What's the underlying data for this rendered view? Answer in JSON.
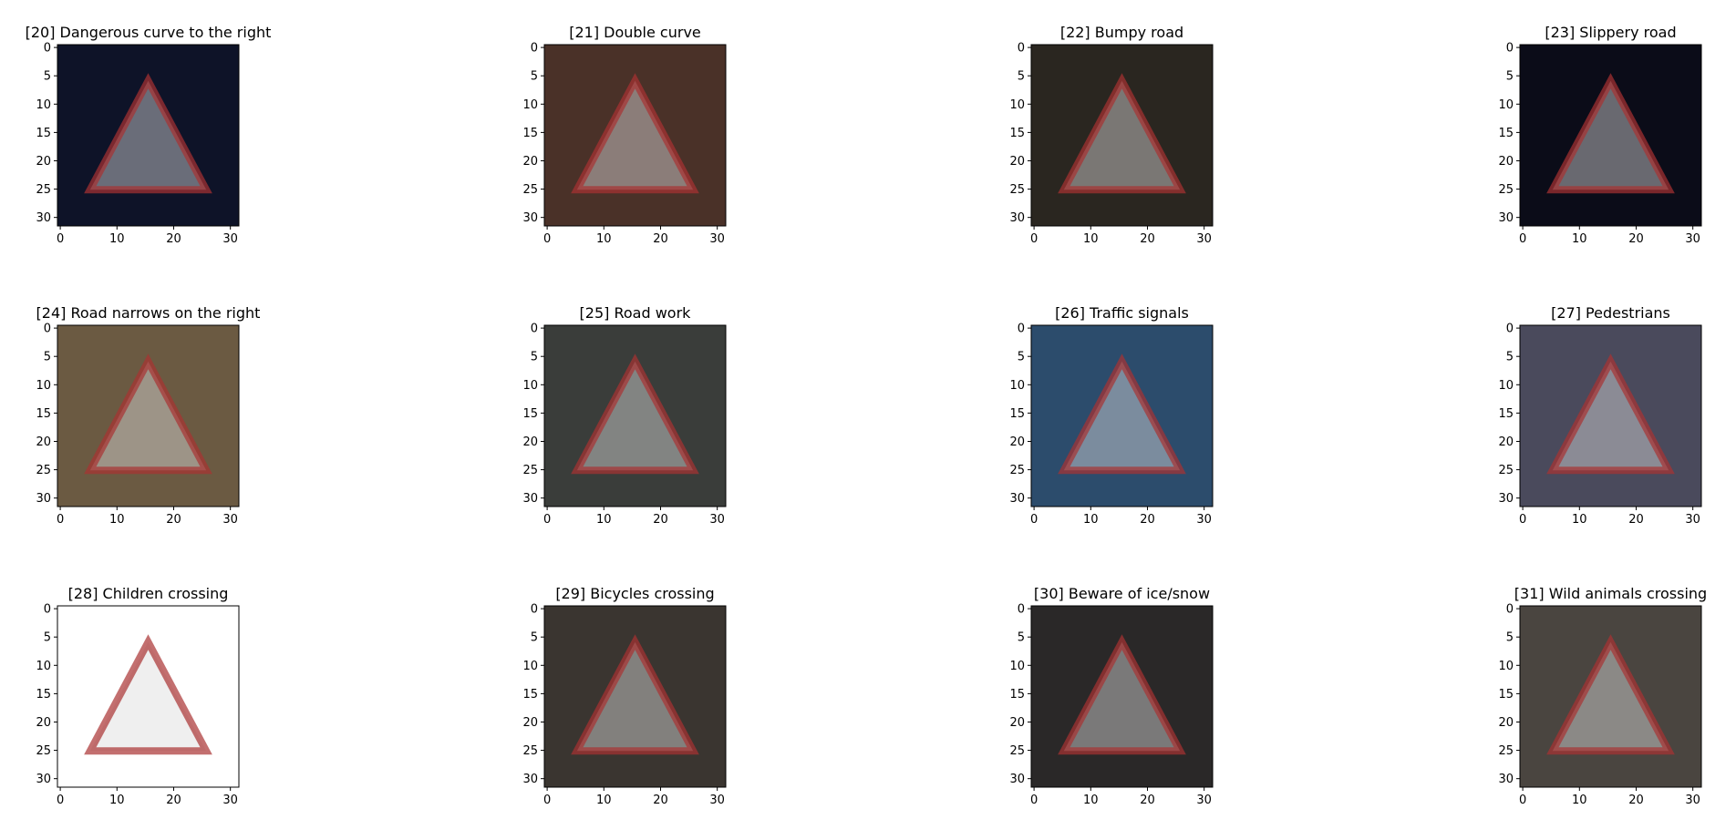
{
  "chart_data": [
    {
      "type": "image",
      "title": "[20] Dangerous curve to the right",
      "color": "#0e1328",
      "xlim": [
        -0.5,
        31.5
      ],
      "ylim": [
        31.5,
        -0.5
      ],
      "xticks": [
        0,
        10,
        20,
        30
      ],
      "yticks": [
        0,
        5,
        10,
        15,
        20,
        25,
        30
      ]
    },
    {
      "type": "image",
      "title": "[21] Double curve",
      "color": "#4a3128",
      "xlim": [
        -0.5,
        31.5
      ],
      "ylim": [
        31.5,
        -0.5
      ],
      "xticks": [
        0,
        10,
        20,
        30
      ],
      "yticks": [
        0,
        5,
        10,
        15,
        20,
        25,
        30
      ]
    },
    {
      "type": "image",
      "title": "[22] Bumpy road",
      "color": "#2a2620",
      "xlim": [
        -0.5,
        31.5
      ],
      "ylim": [
        31.5,
        -0.5
      ],
      "xticks": [
        0,
        10,
        20,
        30
      ],
      "yticks": [
        0,
        5,
        10,
        15,
        20,
        25,
        30
      ]
    },
    {
      "type": "image",
      "title": "[23] Slippery road",
      "color": "#0b0c18",
      "xlim": [
        -0.5,
        31.5
      ],
      "ylim": [
        31.5,
        -0.5
      ],
      "xticks": [
        0,
        10,
        20,
        30
      ],
      "yticks": [
        0,
        5,
        10,
        15,
        20,
        25,
        30
      ]
    },
    {
      "type": "image",
      "title": "[24] Road narrows on the right",
      "color": "#6b5a42",
      "xlim": [
        -0.5,
        31.5
      ],
      "ylim": [
        31.5,
        -0.5
      ],
      "xticks": [
        0,
        10,
        20,
        30
      ],
      "yticks": [
        0,
        5,
        10,
        15,
        20,
        25,
        30
      ]
    },
    {
      "type": "image",
      "title": "[25] Road work",
      "color": "#3a3d3a",
      "xlim": [
        -0.5,
        31.5
      ],
      "ylim": [
        31.5,
        -0.5
      ],
      "xticks": [
        0,
        10,
        20,
        30
      ],
      "yticks": [
        0,
        5,
        10,
        15,
        20,
        25,
        30
      ]
    },
    {
      "type": "image",
      "title": "[26] Traffic signals",
      "color": "#2c4c6c",
      "xlim": [
        -0.5,
        31.5
      ],
      "ylim": [
        31.5,
        -0.5
      ],
      "xticks": [
        0,
        10,
        20,
        30
      ],
      "yticks": [
        0,
        5,
        10,
        15,
        20,
        25,
        30
      ]
    },
    {
      "type": "image",
      "title": "[27] Pedestrians",
      "color": "#4a4a5c",
      "xlim": [
        -0.5,
        31.5
      ],
      "ylim": [
        31.5,
        -0.5
      ],
      "xticks": [
        0,
        10,
        20,
        30
      ],
      "yticks": [
        0,
        5,
        10,
        15,
        20,
        25,
        30
      ]
    },
    {
      "type": "image",
      "title": "[28] Children crossing",
      "color": "#ffffff",
      "xlim": [
        -0.5,
        31.5
      ],
      "ylim": [
        31.5,
        -0.5
      ],
      "xticks": [
        0,
        10,
        20,
        30
      ],
      "yticks": [
        0,
        5,
        10,
        15,
        20,
        25,
        30
      ]
    },
    {
      "type": "image",
      "title": "[29] Bicycles crossing",
      "color": "#3a3530",
      "xlim": [
        -0.5,
        31.5
      ],
      "ylim": [
        31.5,
        -0.5
      ],
      "xticks": [
        0,
        10,
        20,
        30
      ],
      "yticks": [
        0,
        5,
        10,
        15,
        20,
        25,
        30
      ]
    },
    {
      "type": "image",
      "title": "[30] Beware of ice/snow",
      "color": "#2a2828",
      "xlim": [
        -0.5,
        31.5
      ],
      "ylim": [
        31.5,
        -0.5
      ],
      "xticks": [
        0,
        10,
        20,
        30
      ],
      "yticks": [
        0,
        5,
        10,
        15,
        20,
        25,
        30
      ]
    },
    {
      "type": "image",
      "title": "[31] Wild animals crossing",
      "color": "#4a4540",
      "xlim": [
        -0.5,
        31.5
      ],
      "ylim": [
        31.5,
        -0.5
      ],
      "xticks": [
        0,
        10,
        20,
        30
      ],
      "yticks": [
        0,
        5,
        10,
        15,
        20,
        25,
        30
      ]
    }
  ]
}
